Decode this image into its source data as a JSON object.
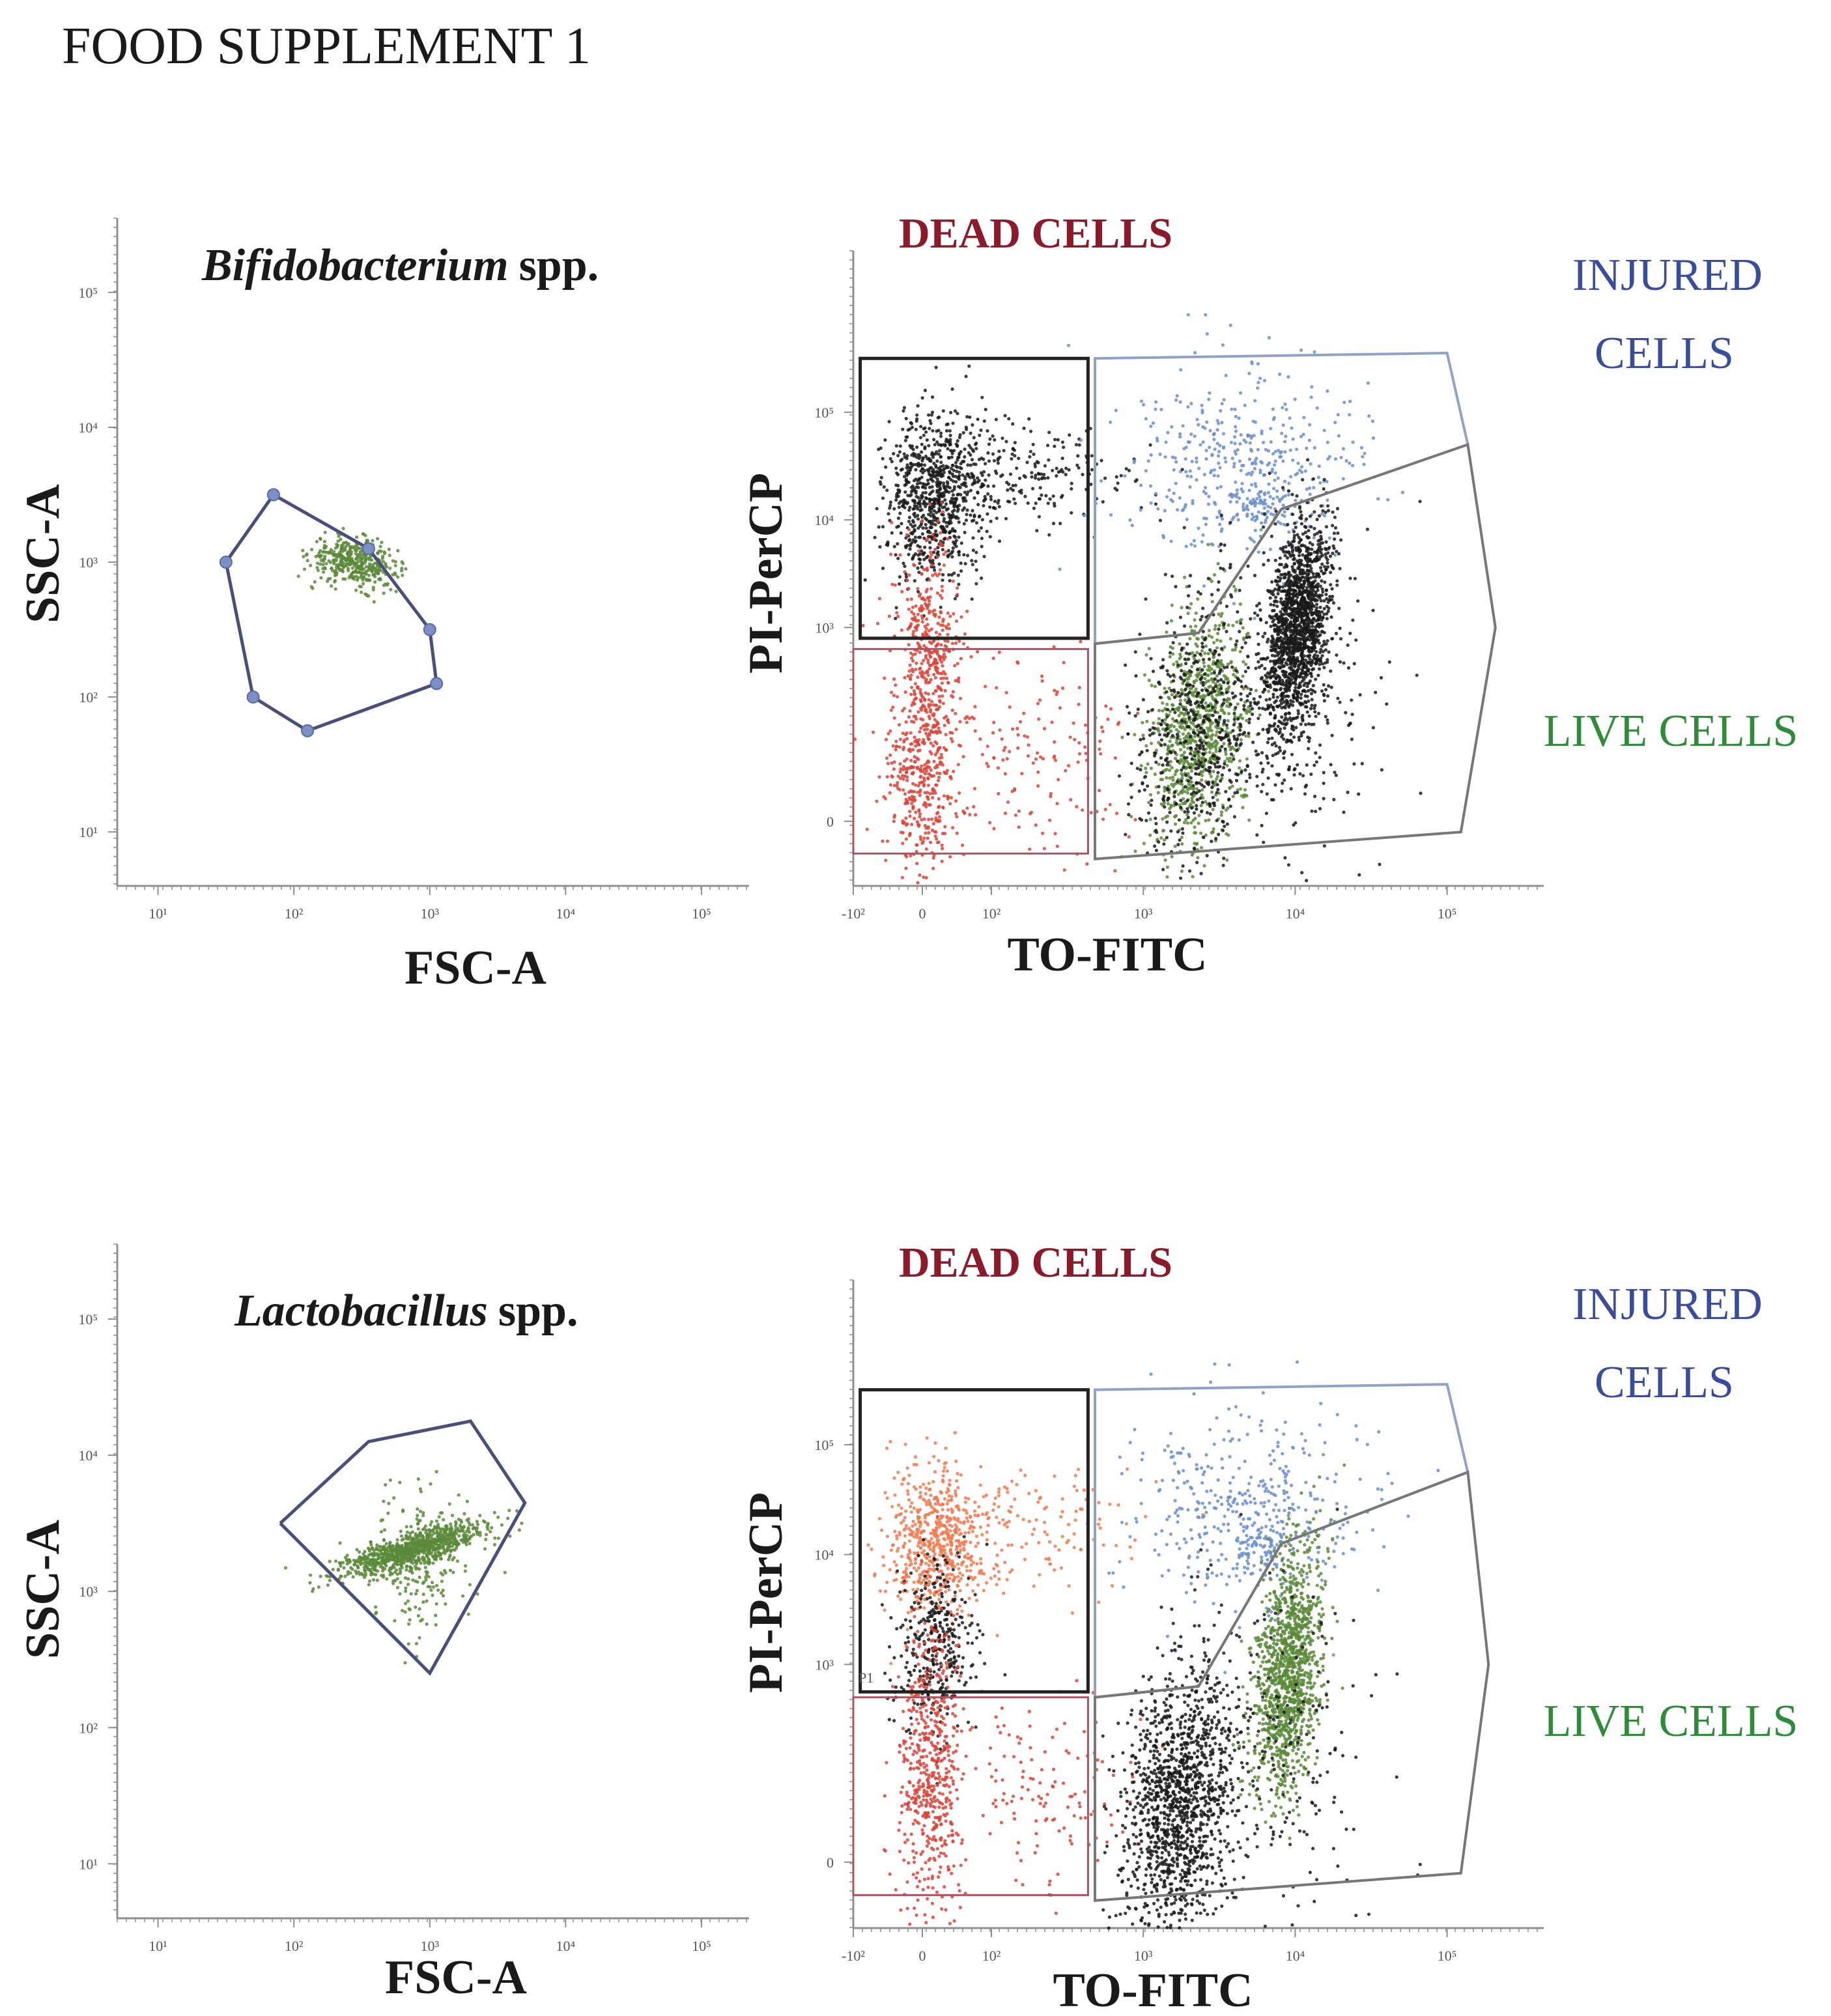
{
  "figure_title": "FOOD SUPPLEMENT 1",
  "colors": {
    "axis": "#8f8f8f",
    "text": "#1a1a1a",
    "dead": "#8b1a2b",
    "injured": "#3b4d9a",
    "live": "#2e8b3a",
    "gate_dead": "#222222",
    "gate_injured": "#8fa3c8",
    "gate_live": "#777777",
    "gate_lower": "#b05060",
    "fsc_gate": "#4a4f7a",
    "dot_black": "#1a1a1a",
    "dot_red": "#d9443a",
    "dot_blue": "#6b8fc9",
    "dot_green": "#5a8a3a",
    "dot_orange": "#f07a50"
  },
  "chart_data": [
    {
      "id": "bifido-scatter",
      "type": "scatter",
      "title": "Bifidobacterium",
      "title_suffix": "spp.",
      "xlabel": "FSC-A",
      "ylabel": "SSC-A",
      "x_scale": "log",
      "y_scale": "log",
      "xlim": [
        0.7,
        5.35
      ],
      "ylim": [
        0.6,
        5.55
      ],
      "x_ticks": [
        {
          "v": 1,
          "label": "10¹"
        },
        {
          "v": 2,
          "label": "10²"
        },
        {
          "v": 3,
          "label": "10³"
        },
        {
          "v": 4,
          "label": "10⁴"
        },
        {
          "v": 5,
          "label": "10⁵"
        }
      ],
      "y_ticks": [
        {
          "v": 1,
          "label": "10¹"
        },
        {
          "v": 2,
          "label": "10²"
        },
        {
          "v": 3,
          "label": "10³"
        },
        {
          "v": 4,
          "label": "10⁴"
        },
        {
          "v": 5,
          "label": "10⁵"
        }
      ],
      "gate": {
        "name": "FSC/SSC gate",
        "vertices": [
          [
            1.5,
            3.0
          ],
          [
            1.85,
            3.5
          ],
          [
            2.55,
            3.1
          ],
          [
            3.0,
            2.5
          ],
          [
            3.05,
            2.1
          ],
          [
            2.1,
            1.75
          ],
          [
            1.7,
            2.0
          ],
          [
            1.5,
            3.0
          ]
        ],
        "show_handles": true
      },
      "clusters": [
        {
          "color_key": "dot_green",
          "cx": 2.45,
          "cy": 3.0,
          "sx": 0.16,
          "sy": 0.09,
          "n": 420,
          "rho": -0.3
        }
      ]
    },
    {
      "id": "bifido-viability",
      "type": "scatter",
      "xlabel": "TO-FITC",
      "ylabel": "PI-PerCP",
      "x_scale": "biexponential",
      "y_scale": "biexponential",
      "xlim": [
        -0.5,
        4.5
      ],
      "ylim": [
        -0.6,
        5.3
      ],
      "x_ticks": [
        {
          "v": -0.5,
          "label": "-10²"
        },
        {
          "v": 0,
          "label": "0"
        },
        {
          "v": 0.5,
          "label": "10²"
        },
        {
          "v": 1.6,
          "label": "10³"
        },
        {
          "v": 2.7,
          "label": "10⁴"
        },
        {
          "v": 3.8,
          "label": "10⁵"
        }
      ],
      "y_ticks": [
        {
          "v": 0,
          "label": "0"
        },
        {
          "v": 1.8,
          "label": "10³"
        },
        {
          "v": 2.8,
          "label": "10⁴"
        },
        {
          "v": 3.8,
          "label": "10⁵"
        }
      ],
      "gate_labels": {
        "dead": "DEAD CELLS",
        "injured_line1": "INJURED",
        "injured_line2": "CELLS",
        "live": "LIVE CELLS"
      },
      "gates": [
        {
          "name": "dead",
          "color_key": "gate_dead",
          "width": 5,
          "vertices": [
            [
              -0.45,
              1.7
            ],
            [
              1.2,
              1.7
            ],
            [
              1.2,
              4.3
            ],
            [
              -0.45,
              4.3
            ]
          ]
        },
        {
          "name": "injured",
          "color_key": "gate_injured",
          "width": 4,
          "vertices": [
            [
              1.25,
              4.3
            ],
            [
              3.8,
              4.35
            ],
            [
              3.95,
              3.5
            ],
            [
              2.6,
              2.9
            ],
            [
              2.0,
              1.75
            ],
            [
              1.25,
              1.65
            ]
          ]
        },
        {
          "name": "live",
          "color_key": "gate_live",
          "width": 4,
          "vertices": [
            [
              2.0,
              1.75
            ],
            [
              2.6,
              2.9
            ],
            [
              3.95,
              3.5
            ],
            [
              4.15,
              1.8
            ],
            [
              3.9,
              -0.1
            ],
            [
              1.25,
              -0.35
            ],
            [
              1.25,
              1.65
            ]
          ]
        },
        {
          "name": "lower-left",
          "color_key": "gate_lower",
          "width": 3,
          "vertices": [
            [
              -0.5,
              1.6
            ],
            [
              1.2,
              1.6
            ],
            [
              1.2,
              -0.3
            ],
            [
              -0.5,
              -0.3
            ]
          ]
        }
      ],
      "clusters": [
        {
          "color_key": "dot_black",
          "cx": 0.1,
          "cy": 3.0,
          "sx": 0.18,
          "sy": 0.38,
          "n": 800,
          "rho": 0
        },
        {
          "color_key": "dot_black",
          "cx": 0.7,
          "cy": 3.2,
          "sx": 0.4,
          "sy": 0.25,
          "n": 220,
          "rho": 0
        },
        {
          "color_key": "dot_red",
          "cx": 0.05,
          "cy": 1.6,
          "sx": 0.12,
          "sy": 0.55,
          "n": 420,
          "rho": 0
        },
        {
          "color_key": "dot_red",
          "cx": 0.0,
          "cy": 0.4,
          "sx": 0.14,
          "sy": 0.45,
          "n": 380,
          "rho": 0
        },
        {
          "color_key": "dot_red",
          "cx": 0.8,
          "cy": 0.6,
          "sx": 0.35,
          "sy": 0.5,
          "n": 150,
          "rho": 0
        },
        {
          "color_key": "dot_blue",
          "cx": 2.3,
          "cy": 3.3,
          "sx": 0.45,
          "sy": 0.45,
          "n": 420,
          "rho": 0
        },
        {
          "color_key": "dot_blue",
          "cx": 2.45,
          "cy": 2.9,
          "sx": 0.1,
          "sy": 0.12,
          "n": 70,
          "rho": 0
        },
        {
          "color_key": "dot_green",
          "cx": 2.0,
          "cy": 0.8,
          "sx": 0.18,
          "sy": 0.55,
          "n": 900,
          "rho": 0.2
        },
        {
          "color_key": "dot_black",
          "cx": 2.0,
          "cy": 0.85,
          "sx": 0.22,
          "sy": 0.6,
          "n": 500,
          "rho": 0.2
        },
        {
          "color_key": "dot_black",
          "cx": 2.72,
          "cy": 1.8,
          "sx": 0.12,
          "sy": 0.5,
          "n": 1600,
          "rho": 0.35
        },
        {
          "color_key": "dot_black",
          "cx": 2.6,
          "cy": 1.2,
          "sx": 0.4,
          "sy": 0.8,
          "n": 260,
          "rho": 0
        }
      ]
    },
    {
      "id": "lacto-scatter",
      "type": "scatter",
      "title": "Lactobacillus",
      "title_suffix": "spp.",
      "xlabel": "FSC-A",
      "ylabel": "SSC-A",
      "x_scale": "log",
      "y_scale": "log",
      "xlim": [
        0.7,
        5.35
      ],
      "ylim": [
        0.6,
        5.55
      ],
      "x_ticks": [
        {
          "v": 1,
          "label": "10¹"
        },
        {
          "v": 2,
          "label": "10²"
        },
        {
          "v": 3,
          "label": "10³"
        },
        {
          "v": 4,
          "label": "10⁴"
        },
        {
          "v": 5,
          "label": "10⁵"
        }
      ],
      "y_ticks": [
        {
          "v": 1,
          "label": "10¹"
        },
        {
          "v": 2,
          "label": "10²"
        },
        {
          "v": 3,
          "label": "10³"
        },
        {
          "v": 4,
          "label": "10⁴"
        },
        {
          "v": 5,
          "label": "10⁵"
        }
      ],
      "gate": {
        "name": "FSC/SSC gate",
        "vertices": [
          [
            1.9,
            3.5
          ],
          [
            2.55,
            4.1
          ],
          [
            3.3,
            4.25
          ],
          [
            3.7,
            3.65
          ],
          [
            3.0,
            2.4
          ],
          [
            1.9,
            3.5
          ]
        ],
        "show_handles": false
      },
      "clusters": [
        {
          "color_key": "dot_green",
          "cx": 2.85,
          "cy": 3.3,
          "sx": 0.28,
          "sy": 0.1,
          "n": 900,
          "rho": 0.75
        },
        {
          "color_key": "dot_green",
          "cx": 2.95,
          "cy": 3.2,
          "sx": 0.18,
          "sy": 0.28,
          "n": 180,
          "rho": 0
        }
      ]
    },
    {
      "id": "lacto-viability",
      "type": "scatter",
      "xlabel": "TO-FITC",
      "ylabel": "PI-PerCP",
      "x_scale": "biexponential",
      "y_scale": "biexponential",
      "xlim": [
        -0.5,
        4.5
      ],
      "ylim": [
        -0.6,
        5.3
      ],
      "x_ticks": [
        {
          "v": -0.5,
          "label": "-10²"
        },
        {
          "v": 0,
          "label": "0"
        },
        {
          "v": 0.5,
          "label": "10²"
        },
        {
          "v": 1.6,
          "label": "10³"
        },
        {
          "v": 2.7,
          "label": "10⁴"
        },
        {
          "v": 3.8,
          "label": "10⁵"
        }
      ],
      "y_ticks": [
        {
          "v": 0,
          "label": "0"
        },
        {
          "v": 1.8,
          "label": "10³"
        },
        {
          "v": 2.8,
          "label": "10⁴"
        },
        {
          "v": 3.8,
          "label": "10⁵"
        }
      ],
      "gate_labels": {
        "dead": "DEAD CELLS",
        "injured_line1": "INJURED",
        "injured_line2": "CELLS",
        "live": "LIVE CELLS"
      },
      "p1_label": "P1",
      "gates": [
        {
          "name": "dead",
          "color_key": "gate_dead",
          "width": 5,
          "vertices": [
            [
              -0.45,
              1.55
            ],
            [
              1.2,
              1.55
            ],
            [
              1.2,
              4.3
            ],
            [
              -0.45,
              4.3
            ]
          ]
        },
        {
          "name": "injured",
          "color_key": "gate_injured",
          "width": 4,
          "vertices": [
            [
              1.25,
              4.3
            ],
            [
              3.8,
              4.35
            ],
            [
              3.95,
              3.55
            ],
            [
              2.6,
              2.9
            ],
            [
              2.0,
              1.6
            ],
            [
              1.25,
              1.5
            ]
          ]
        },
        {
          "name": "live",
          "color_key": "gate_live",
          "width": 4,
          "vertices": [
            [
              2.0,
              1.6
            ],
            [
              2.6,
              2.9
            ],
            [
              3.95,
              3.55
            ],
            [
              4.1,
              1.8
            ],
            [
              3.9,
              -0.1
            ],
            [
              1.25,
              -0.35
            ],
            [
              1.25,
              1.5
            ]
          ]
        },
        {
          "name": "lower-left",
          "color_key": "gate_lower",
          "width": 3,
          "vertices": [
            [
              -0.5,
              1.5
            ],
            [
              1.2,
              1.5
            ],
            [
              1.2,
              -0.3
            ],
            [
              -0.5,
              -0.3
            ]
          ]
        }
      ],
      "clusters": [
        {
          "color_key": "dot_orange",
          "cx": 0.1,
          "cy": 2.9,
          "sx": 0.18,
          "sy": 0.35,
          "n": 600,
          "rho": 0
        },
        {
          "color_key": "dot_orange",
          "cx": 0.8,
          "cy": 3.0,
          "sx": 0.4,
          "sy": 0.3,
          "n": 150,
          "rho": 0
        },
        {
          "color_key": "dot_black",
          "cx": 0.1,
          "cy": 2.0,
          "sx": 0.15,
          "sy": 0.4,
          "n": 350,
          "rho": 0
        },
        {
          "color_key": "dot_red",
          "cx": 0.05,
          "cy": 0.8,
          "sx": 0.12,
          "sy": 0.7,
          "n": 550,
          "rho": 0
        },
        {
          "color_key": "dot_red",
          "cx": 0.8,
          "cy": 0.6,
          "sx": 0.35,
          "sy": 0.5,
          "n": 150,
          "rho": 0
        },
        {
          "color_key": "dot_blue",
          "cx": 2.3,
          "cy": 3.2,
          "sx": 0.45,
          "sy": 0.45,
          "n": 400,
          "rho": 0
        },
        {
          "color_key": "dot_blue",
          "cx": 2.45,
          "cy": 2.85,
          "sx": 0.1,
          "sy": 0.12,
          "n": 70,
          "rho": 0
        },
        {
          "color_key": "dot_black",
          "cx": 1.85,
          "cy": 0.55,
          "sx": 0.2,
          "sy": 0.6,
          "n": 1300,
          "rho": 0.2
        },
        {
          "color_key": "dot_green",
          "cx": 2.65,
          "cy": 1.75,
          "sx": 0.12,
          "sy": 0.55,
          "n": 1300,
          "rho": 0.35
        },
        {
          "color_key": "dot_black",
          "cx": 2.5,
          "cy": 1.1,
          "sx": 0.4,
          "sy": 0.8,
          "n": 250,
          "rho": 0
        }
      ]
    }
  ]
}
